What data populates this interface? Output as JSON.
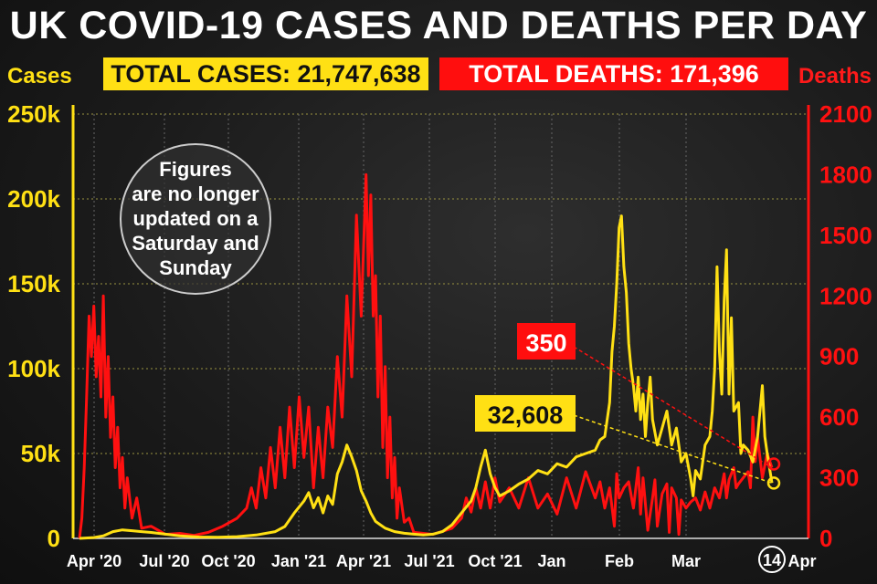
{
  "title": "UK COVID-19 CASES AND DEATHS PER DAY",
  "labels": {
    "cases_axis": "Cases",
    "deaths_axis": "Deaths",
    "total_cases": "TOTAL CASES: 21,747,638",
    "total_deaths": "TOTAL DEATHS: 171,396",
    "note": [
      "Figures",
      "are no longer",
      "updated on a",
      "Saturday and",
      "Sunday"
    ],
    "last_deaths": "350",
    "last_cases": "32,608"
  },
  "colors": {
    "cases": "#ffe014",
    "deaths": "#ff1010",
    "background": "#1b1b1b"
  },
  "chart_data": {
    "type": "line",
    "title": "UK COVID-19 CASES AND DEATHS PER DAY",
    "x_ticks": [
      "Apr '20",
      "Jul '20",
      "Oct '20",
      "Jan '21",
      "Apr '21",
      "Jul '21",
      "Oct '21",
      "Jan",
      "Feb",
      "Mar",
      "14",
      "Apr"
    ],
    "y_left": {
      "label": "Cases",
      "ticks": [
        "0",
        "50k",
        "100k",
        "150k",
        "200k",
        "250k"
      ],
      "ylim": [
        0,
        250000
      ]
    },
    "y_right": {
      "label": "Deaths",
      "ticks": [
        "0",
        "300",
        "600",
        "900",
        "1200",
        "1500",
        "1800",
        "2100"
      ],
      "ylim": [
        0,
        2100
      ]
    },
    "grid": true,
    "series": [
      {
        "name": "Cases",
        "axis": "left",
        "points": [
          [
            0,
            0
          ],
          [
            3,
            500
          ],
          [
            5,
            1500
          ],
          [
            7,
            4000
          ],
          [
            9,
            5000
          ],
          [
            11,
            4500
          ],
          [
            13,
            4000
          ],
          [
            15,
            3500
          ],
          [
            18,
            2500
          ],
          [
            21,
            1500
          ],
          [
            25,
            800
          ],
          [
            29,
            700
          ],
          [
            33,
            1000
          ],
          [
            37,
            2000
          ],
          [
            41,
            4000
          ],
          [
            43,
            7000
          ],
          [
            45,
            15000
          ],
          [
            47,
            22000
          ],
          [
            48,
            27000
          ],
          [
            49,
            18000
          ],
          [
            50,
            24000
          ],
          [
            51,
            15000
          ],
          [
            52,
            25000
          ],
          [
            53,
            20000
          ],
          [
            54,
            38000
          ],
          [
            55,
            45000
          ],
          [
            56,
            55000
          ],
          [
            57,
            48000
          ],
          [
            58,
            40000
          ],
          [
            59,
            28000
          ],
          [
            60,
            22000
          ],
          [
            61,
            15000
          ],
          [
            62,
            10000
          ],
          [
            63,
            8000
          ],
          [
            64,
            6000
          ],
          [
            66,
            4000
          ],
          [
            68,
            3000
          ],
          [
            70,
            2500
          ],
          [
            72,
            2000
          ],
          [
            74,
            2500
          ],
          [
            76,
            4000
          ],
          [
            78,
            8000
          ],
          [
            80,
            15000
          ],
          [
            82,
            22000
          ],
          [
            83,
            30000
          ],
          [
            84,
            42000
          ],
          [
            85,
            52000
          ],
          [
            86,
            38000
          ],
          [
            87,
            30000
          ],
          [
            88,
            25000
          ],
          [
            90,
            28000
          ],
          [
            92,
            32000
          ],
          [
            94,
            35000
          ],
          [
            96,
            40000
          ],
          [
            98,
            38000
          ],
          [
            100,
            44000
          ],
          [
            102,
            42000
          ],
          [
            104,
            48000
          ],
          [
            106,
            50000
          ],
          [
            108,
            52000
          ],
          [
            109,
            58000
          ],
          [
            110,
            60000
          ],
          [
            111,
            80000
          ],
          [
            111.5,
            110000
          ],
          [
            112,
            125000
          ],
          [
            112.5,
            150000
          ],
          [
            113,
            183000
          ],
          [
            113.5,
            190000
          ],
          [
            114,
            160000
          ],
          [
            114.5,
            145000
          ],
          [
            115,
            115000
          ],
          [
            115.5,
            100000
          ],
          [
            116,
            90000
          ],
          [
            116.5,
            75000
          ],
          [
            117,
            95000
          ],
          [
            117.5,
            70000
          ],
          [
            118,
            85000
          ],
          [
            118.5,
            60000
          ],
          [
            119,
            80000
          ],
          [
            119.5,
            95000
          ],
          [
            120,
            70000
          ],
          [
            121,
            55000
          ],
          [
            122,
            65000
          ],
          [
            123,
            75000
          ],
          [
            124,
            55000
          ],
          [
            125,
            65000
          ],
          [
            126,
            45000
          ],
          [
            127,
            50000
          ],
          [
            128,
            35000
          ],
          [
            128.5,
            25000
          ],
          [
            129,
            40000
          ],
          [
            130,
            35000
          ],
          [
            131,
            55000
          ],
          [
            132,
            60000
          ],
          [
            132.5,
            75000
          ],
          [
            133,
            100000
          ],
          [
            133.5,
            160000
          ],
          [
            134,
            110000
          ],
          [
            134.5,
            85000
          ],
          [
            135,
            140000
          ],
          [
            135.5,
            170000
          ],
          [
            136,
            85000
          ],
          [
            136.5,
            130000
          ],
          [
            137,
            75000
          ],
          [
            138,
            80000
          ],
          [
            138.5,
            50000
          ],
          [
            139,
            55000
          ],
          [
            140,
            52000
          ],
          [
            141,
            45000
          ],
          [
            142,
            60000
          ],
          [
            143,
            90000
          ],
          [
            143.5,
            60000
          ],
          [
            144,
            50000
          ],
          [
            145,
            32608
          ]
        ]
      },
      {
        "name": "Deaths",
        "axis": "right",
        "points": [
          [
            0,
            0
          ],
          [
            0.5,
            100
          ],
          [
            1,
            350
          ],
          [
            1.5,
            700
          ],
          [
            2,
            1100
          ],
          [
            2.5,
            900
          ],
          [
            3,
            1150
          ],
          [
            3.5,
            800
          ],
          [
            4,
            1000
          ],
          [
            4.5,
            700
          ],
          [
            5,
            1200
          ],
          [
            5.5,
            600
          ],
          [
            6,
            900
          ],
          [
            6.5,
            500
          ],
          [
            7,
            700
          ],
          [
            7.5,
            350
          ],
          [
            8,
            550
          ],
          [
            8.5,
            250
          ],
          [
            9,
            400
          ],
          [
            9.5,
            150
          ],
          [
            10,
            300
          ],
          [
            11,
            100
          ],
          [
            12,
            200
          ],
          [
            13,
            50
          ],
          [
            15,
            60
          ],
          [
            18,
            20
          ],
          [
            21,
            25
          ],
          [
            24,
            15
          ],
          [
            27,
            30
          ],
          [
            30,
            60
          ],
          [
            33,
            100
          ],
          [
            35,
            150
          ],
          [
            36,
            250
          ],
          [
            37,
            150
          ],
          [
            38,
            350
          ],
          [
            39,
            200
          ],
          [
            40,
            450
          ],
          [
            41,
            250
          ],
          [
            42,
            550
          ],
          [
            43,
            300
          ],
          [
            44,
            650
          ],
          [
            45,
            350
          ],
          [
            46,
            700
          ],
          [
            47,
            400
          ],
          [
            48,
            650
          ],
          [
            49,
            250
          ],
          [
            50,
            550
          ],
          [
            51,
            300
          ],
          [
            52,
            650
          ],
          [
            53,
            450
          ],
          [
            54,
            900
          ],
          [
            55,
            600
          ],
          [
            56,
            1200
          ],
          [
            57,
            800
          ],
          [
            58,
            1600
          ],
          [
            59,
            1100
          ],
          [
            60,
            1800
          ],
          [
            60.5,
            1300
          ],
          [
            61,
            1700
          ],
          [
            61.5,
            1100
          ],
          [
            62,
            1300
          ],
          [
            62.5,
            700
          ],
          [
            63,
            1100
          ],
          [
            63.5,
            450
          ],
          [
            64,
            850
          ],
          [
            64.5,
            300
          ],
          [
            65,
            600
          ],
          [
            65.5,
            200
          ],
          [
            66,
            400
          ],
          [
            66.5,
            100
          ],
          [
            67,
            250
          ],
          [
            68,
            80
          ],
          [
            69,
            100
          ],
          [
            70,
            30
          ],
          [
            72,
            25
          ],
          [
            74,
            20
          ],
          [
            76,
            35
          ],
          [
            78,
            50
          ],
          [
            80,
            100
          ],
          [
            81,
            200
          ],
          [
            82,
            130
          ],
          [
            83,
            250
          ],
          [
            84,
            150
          ],
          [
            85,
            280
          ],
          [
            86,
            150
          ],
          [
            87,
            300
          ],
          [
            88,
            180
          ],
          [
            90,
            250
          ],
          [
            92,
            150
          ],
          [
            94,
            300
          ],
          [
            96,
            150
          ],
          [
            98,
            220
          ],
          [
            100,
            120
          ],
          [
            102,
            300
          ],
          [
            104,
            150
          ],
          [
            106,
            330
          ],
          [
            108,
            200
          ],
          [
            109,
            280
          ],
          [
            110,
            150
          ],
          [
            111,
            250
          ],
          [
            112,
            60
          ],
          [
            112.5,
            320
          ],
          [
            113,
            200
          ],
          [
            114,
            250
          ],
          [
            115,
            280
          ],
          [
            116,
            150
          ],
          [
            117,
            350
          ],
          [
            117.5,
            120
          ],
          [
            118,
            300
          ],
          [
            119,
            40
          ],
          [
            120,
            200
          ],
          [
            120.5,
            290
          ],
          [
            121,
            60
          ],
          [
            122,
            220
          ],
          [
            123,
            270
          ],
          [
            123.5,
            30
          ],
          [
            124,
            250
          ],
          [
            125,
            200
          ],
          [
            125.5,
            20
          ],
          [
            126,
            190
          ],
          [
            127,
            150
          ],
          [
            128,
            180
          ],
          [
            129,
            200
          ],
          [
            130,
            140
          ],
          [
            131,
            230
          ],
          [
            132,
            150
          ],
          [
            133,
            250
          ],
          [
            134,
            200
          ],
          [
            135,
            320
          ],
          [
            135.5,
            200
          ],
          [
            136,
            290
          ],
          [
            137,
            350
          ],
          [
            137.5,
            250
          ],
          [
            138,
            270
          ],
          [
            139,
            300
          ],
          [
            140,
            330
          ],
          [
            140.5,
            250
          ],
          [
            141,
            600
          ],
          [
            141.5,
            380
          ],
          [
            142,
            500
          ],
          [
            143,
            300
          ],
          [
            144,
            420
          ],
          [
            145,
            350
          ]
        ]
      }
    ]
  }
}
